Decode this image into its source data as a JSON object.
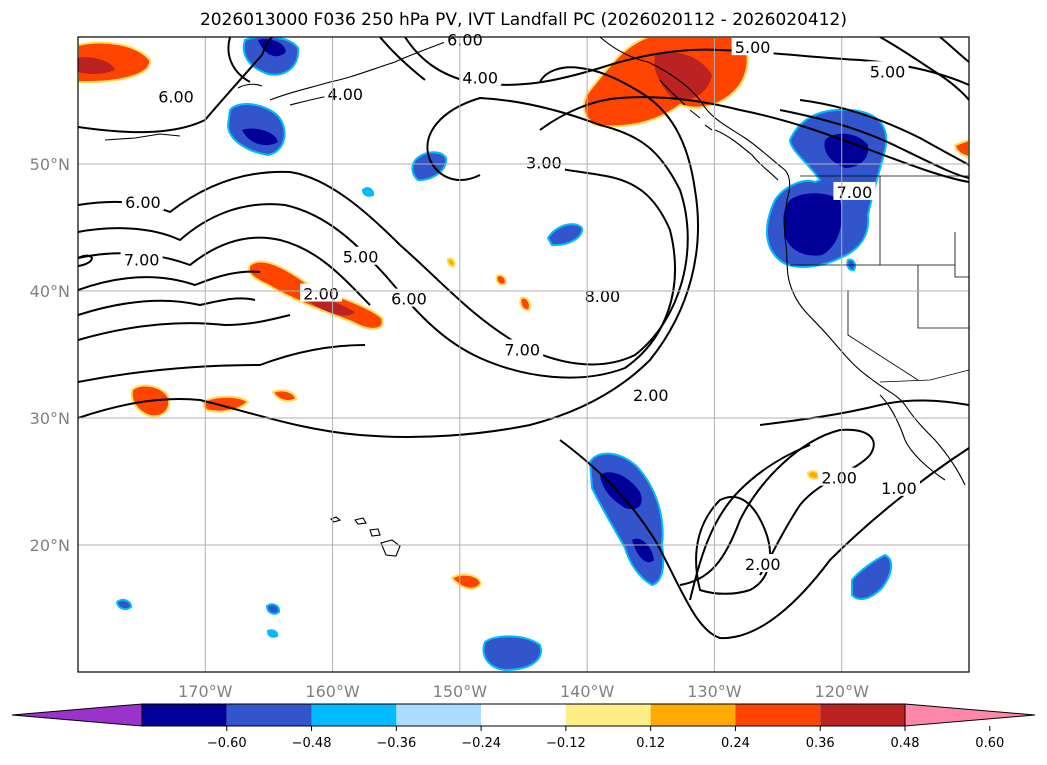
{
  "title": "2026013000 F036 250 hPa PV, IVT Landfall PC (2026020112 - 2026020412)",
  "map": {
    "lon_range": [
      -180,
      -110
    ],
    "lat_range": [
      10,
      60
    ],
    "lon_ticks": [
      {
        "lon": -170,
        "label": "170°W"
      },
      {
        "lon": -160,
        "label": "160°W"
      },
      {
        "lon": -150,
        "label": "150°W"
      },
      {
        "lon": -140,
        "label": "140°W"
      },
      {
        "lon": -130,
        "label": "130°W"
      },
      {
        "lon": -120,
        "label": "120°W"
      }
    ],
    "lat_ticks": [
      {
        "lat": 50,
        "label": "50°N"
      },
      {
        "lat": 40,
        "label": "40°N"
      },
      {
        "lat": 30,
        "label": "30°N"
      },
      {
        "lat": 20,
        "label": "20°N"
      }
    ],
    "grid": true
  },
  "contour_labels": [
    {
      "text": "6.00",
      "lon": -172.3,
      "lat": 55.3
    },
    {
      "text": "6.00",
      "lon": -174.9,
      "lat": 47.0
    },
    {
      "text": "7.00",
      "lon": -175.0,
      "lat": 42.5
    },
    {
      "text": "4.00",
      "lon": -159.0,
      "lat": 55.5
    },
    {
      "text": "6.00",
      "lon": -149.6,
      "lat": 59.8
    },
    {
      "text": "4.00",
      "lon": -148.4,
      "lat": 56.8
    },
    {
      "text": "5.00",
      "lon": -127.0,
      "lat": 59.2
    },
    {
      "text": "5.00",
      "lon": -116.4,
      "lat": 57.3
    },
    {
      "text": "3.00",
      "lon": -143.4,
      "lat": 50.1
    },
    {
      "text": "7.00",
      "lon": -119.0,
      "lat": 47.8
    },
    {
      "text": "5.00",
      "lon": -157.8,
      "lat": 42.7
    },
    {
      "text": "6.00",
      "lon": -154.0,
      "lat": 39.4
    },
    {
      "text": "2.00",
      "lon": -160.9,
      "lat": 39.8
    },
    {
      "text": "8.00",
      "lon": -138.8,
      "lat": 39.6
    },
    {
      "text": "7.00",
      "lon": -145.1,
      "lat": 35.4
    },
    {
      "text": "2.00",
      "lon": -135.0,
      "lat": 31.8
    },
    {
      "text": "2.00",
      "lon": -120.2,
      "lat": 25.3
    },
    {
      "text": "1.00",
      "lon": -115.5,
      "lat": 24.5
    },
    {
      "text": "2.00",
      "lon": -126.2,
      "lat": 18.5
    }
  ],
  "colorbar": {
    "colors": [
      "#9933cc",
      "#000099",
      "#3355cc",
      "#00bbff",
      "#aaddff",
      "#ffffff",
      "#ffee88",
      "#ffaa00",
      "#ff4400",
      "#bb2222",
      "#ff88aa"
    ],
    "ticks": [
      "−0.60",
      "−0.48",
      "−0.36",
      "−0.24",
      "−0.12",
      "0.12",
      "0.24",
      "0.36",
      "0.48",
      "0.60"
    ]
  }
}
